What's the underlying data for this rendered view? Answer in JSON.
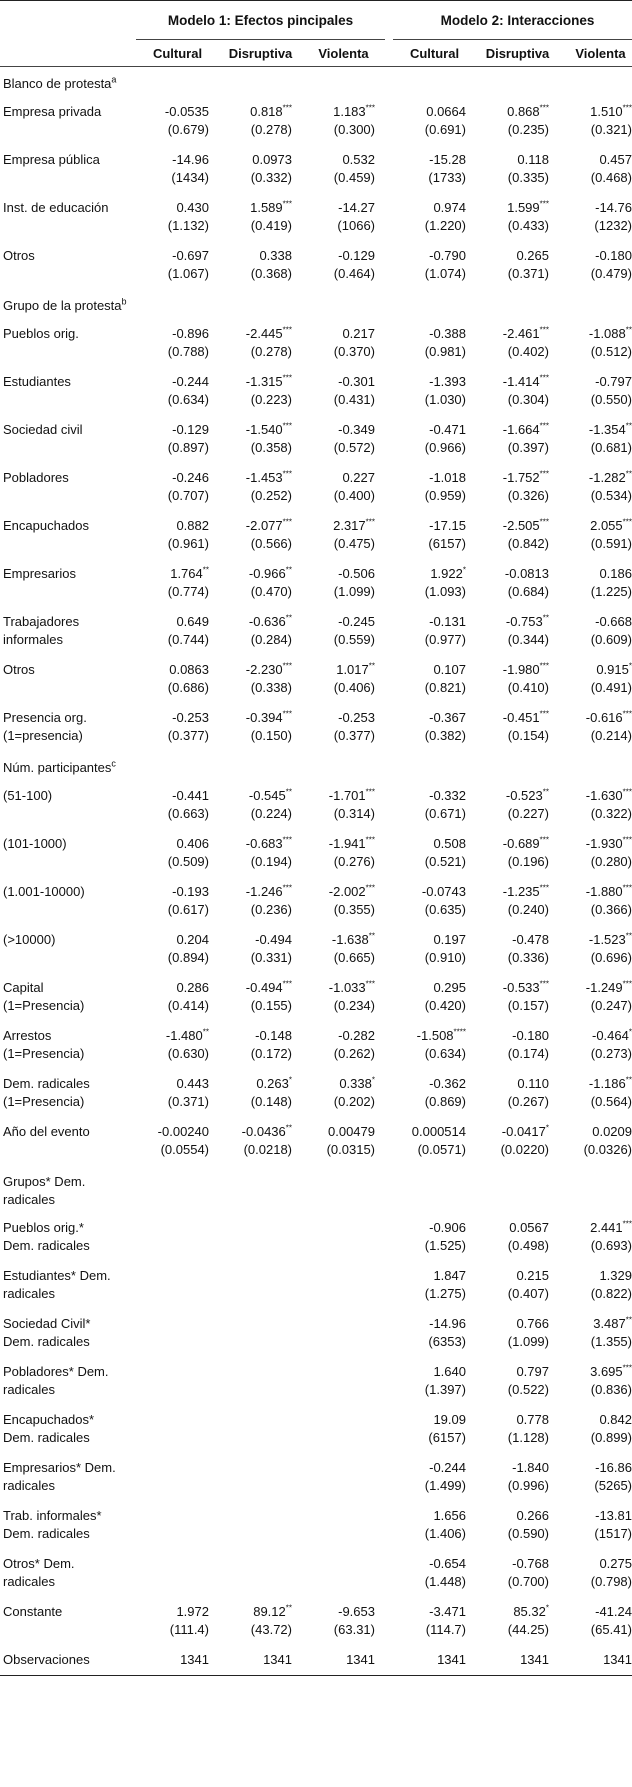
{
  "header": {
    "model1": "Modelo 1: Efectos pincipales",
    "model2": "Modelo 2: Interacciones",
    "columns": [
      "Cultural",
      "Disruptiva",
      "Violenta",
      "Cultural",
      "Disruptiva",
      "Violenta"
    ]
  },
  "rows": [
    {
      "type": "section",
      "label": "Blanco de protesta",
      "sup": "a"
    },
    {
      "type": "row",
      "label": [
        "Empresa privada"
      ],
      "cells": [
        [
          "-0.0535",
          "(0.679)"
        ],
        [
          "0.818***",
          "(0.278)"
        ],
        [
          "1.183***",
          "(0.300)"
        ],
        [
          "0.0664",
          "(0.691)"
        ],
        [
          "0.868***",
          "(0.235)"
        ],
        [
          "1.510***",
          "(0.321)"
        ]
      ]
    },
    {
      "type": "row",
      "label": [
        "Empresa pública"
      ],
      "cells": [
        [
          "-14.96",
          "(1434)"
        ],
        [
          "0.0973",
          "(0.332)"
        ],
        [
          "0.532",
          "(0.459)"
        ],
        [
          "-15.28",
          "(1733)"
        ],
        [
          "0.118",
          "(0.335)"
        ],
        [
          "0.457",
          "(0.468)"
        ]
      ]
    },
    {
      "type": "row",
      "label": [
        "Inst. de educación"
      ],
      "cells": [
        [
          "0.430",
          "(1.132)"
        ],
        [
          "1.589***",
          "(0.419)"
        ],
        [
          "-14.27",
          "(1066)"
        ],
        [
          "0.974",
          "(1.220)"
        ],
        [
          "1.599***",
          "(0.433)"
        ],
        [
          "-14.76",
          "(1232)"
        ]
      ]
    },
    {
      "type": "row",
      "label": [
        "Otros"
      ],
      "cells": [
        [
          "-0.697",
          "(1.067)"
        ],
        [
          "0.338",
          "(0.368)"
        ],
        [
          "-0.129",
          "(0.464)"
        ],
        [
          "-0.790",
          "(1.074)"
        ],
        [
          "0.265",
          "(0.371)"
        ],
        [
          "-0.180",
          "(0.479)"
        ]
      ]
    },
    {
      "type": "section",
      "label": "Grupo de la protesta",
      "sup": "b"
    },
    {
      "type": "row",
      "label": [
        "Pueblos orig."
      ],
      "cells": [
        [
          "-0.896",
          "(0.788)"
        ],
        [
          "-2.445***",
          "(0.278)"
        ],
        [
          "0.217",
          "(0.370)"
        ],
        [
          "-0.388",
          "(0.981)"
        ],
        [
          "-2.461***",
          "(0.402)"
        ],
        [
          "-1.088**",
          "(0.512)"
        ]
      ]
    },
    {
      "type": "row",
      "label": [
        "Estudiantes"
      ],
      "cells": [
        [
          "-0.244",
          "(0.634)"
        ],
        [
          "-1.315***",
          "(0.223)"
        ],
        [
          "-0.301",
          "(0.431)"
        ],
        [
          "-1.393",
          "(1.030)"
        ],
        [
          "-1.414***",
          "(0.304)"
        ],
        [
          "-0.797",
          "(0.550)"
        ]
      ]
    },
    {
      "type": "row",
      "label": [
        "Sociedad civil"
      ],
      "cells": [
        [
          "-0.129",
          "(0.897)"
        ],
        [
          "-1.540***",
          "(0.358)"
        ],
        [
          "-0.349",
          "(0.572)"
        ],
        [
          "-0.471",
          "(0.966)"
        ],
        [
          "-1.664***",
          "(0.397)"
        ],
        [
          "-1.354**",
          "(0.681)"
        ]
      ]
    },
    {
      "type": "row",
      "label": [
        "Pobladores"
      ],
      "cells": [
        [
          "-0.246",
          "(0.707)"
        ],
        [
          "-1.453***",
          "(0.252)"
        ],
        [
          "0.227",
          "(0.400)"
        ],
        [
          "-1.018",
          "(0.959)"
        ],
        [
          "-1.752***",
          "(0.326)"
        ],
        [
          "-1.282**",
          "(0.534)"
        ]
      ]
    },
    {
      "type": "row",
      "label": [
        "Encapuchados"
      ],
      "cells": [
        [
          "0.882",
          "(0.961)"
        ],
        [
          "-2.077***",
          "(0.566)"
        ],
        [
          "2.317***",
          "(0.475)"
        ],
        [
          "-17.15",
          "(6157)"
        ],
        [
          "-2.505***",
          "(0.842)"
        ],
        [
          "2.055***",
          "(0.591)"
        ]
      ]
    },
    {
      "type": "row",
      "label": [
        "Empresarios"
      ],
      "cells": [
        [
          "1.764**",
          "(0.774)"
        ],
        [
          "-0.966**",
          "(0.470)"
        ],
        [
          "-0.506",
          "(1.099)"
        ],
        [
          "1.922*",
          "(1.093)"
        ],
        [
          "-0.0813",
          "(0.684)"
        ],
        [
          "0.186",
          "(1.225)"
        ]
      ]
    },
    {
      "type": "row",
      "label": [
        "Trabajadores",
        "informales"
      ],
      "cells": [
        [
          "0.649",
          "(0.744)"
        ],
        [
          "-0.636**",
          "(0.284)"
        ],
        [
          "-0.245",
          "(0.559)"
        ],
        [
          "-0.131",
          "(0.977)"
        ],
        [
          "-0.753**",
          "(0.344)"
        ],
        [
          "-0.668",
          "(0.609)"
        ]
      ]
    },
    {
      "type": "row",
      "label": [
        "Otros"
      ],
      "cells": [
        [
          "0.0863",
          "(0.686)"
        ],
        [
          "-2.230***",
          "(0.338)"
        ],
        [
          "1.017**",
          "(0.406)"
        ],
        [
          "0.107",
          "(0.821)"
        ],
        [
          "-1.980***",
          "(0.410)"
        ],
        [
          "0.915*",
          "(0.491)"
        ]
      ]
    },
    {
      "type": "row",
      "label": [
        "Presencia org.",
        "(1=presencia)"
      ],
      "cells": [
        [
          "-0.253",
          "(0.377)"
        ],
        [
          "-0.394***",
          "(0.150)"
        ],
        [
          "-0.253",
          "(0.377)"
        ],
        [
          "-0.367",
          "(0.382)"
        ],
        [
          "-0.451***",
          "(0.154)"
        ],
        [
          "-0.616***",
          "(0.214)"
        ]
      ]
    },
    {
      "type": "section",
      "label": "Núm. participantes",
      "sup": "c"
    },
    {
      "type": "row",
      "label": [
        "(51-100)"
      ],
      "cells": [
        [
          "-0.441",
          "(0.663)"
        ],
        [
          "-0.545**",
          "(0.224)"
        ],
        [
          "-1.701***",
          "(0.314)"
        ],
        [
          "-0.332",
          "(0.671)"
        ],
        [
          "-0.523**",
          "(0.227)"
        ],
        [
          "-1.630***",
          "(0.322)"
        ]
      ]
    },
    {
      "type": "row",
      "label": [
        "(101-1000)"
      ],
      "cells": [
        [
          "0.406",
          "(0.509)"
        ],
        [
          "-0.683***",
          "(0.194)"
        ],
        [
          "-1.941***",
          "(0.276)"
        ],
        [
          "0.508",
          "(0.521)"
        ],
        [
          "-0.689***",
          "(0.196)"
        ],
        [
          "-1.930***",
          "(0.280)"
        ]
      ]
    },
    {
      "type": "row",
      "label": [
        "(1.001-10000)"
      ],
      "cells": [
        [
          "-0.193",
          "(0.617)"
        ],
        [
          "-1.246***",
          "(0.236)"
        ],
        [
          "-2.002***",
          "(0.355)"
        ],
        [
          "-0.0743",
          "(0.635)"
        ],
        [
          "-1.235***",
          "(0.240)"
        ],
        [
          "-1.880***",
          "(0.366)"
        ]
      ]
    },
    {
      "type": "row",
      "label": [
        "(>10000)"
      ],
      "cells": [
        [
          "0.204",
          "(0.894)"
        ],
        [
          "-0.494",
          "(0.331)"
        ],
        [
          "-1.638**",
          "(0.665)"
        ],
        [
          "0.197",
          "(0.910)"
        ],
        [
          "-0.478",
          "(0.336)"
        ],
        [
          "-1.523**",
          "(0.696)"
        ]
      ]
    },
    {
      "type": "row",
      "label": [
        "Capital",
        "(1=Presencia)"
      ],
      "cells": [
        [
          "0.286",
          "(0.414)"
        ],
        [
          "-0.494***",
          "(0.155)"
        ],
        [
          "-1.033***",
          "(0.234)"
        ],
        [
          "0.295",
          "(0.420)"
        ],
        [
          "-0.533***",
          "(0.157)"
        ],
        [
          "-1.249***",
          "(0.247)"
        ]
      ]
    },
    {
      "type": "row",
      "label": [
        "Arrestos",
        "(1=Presencia)"
      ],
      "cells": [
        [
          "-1.480**",
          "(0.630)"
        ],
        [
          "-0.148",
          "(0.172)"
        ],
        [
          "-0.282",
          "(0.262)"
        ],
        [
          "-1.508****",
          "(0.634)"
        ],
        [
          "-0.180",
          "(0.174)"
        ],
        [
          "-0.464*",
          "(0.273)"
        ]
      ]
    },
    {
      "type": "row",
      "label": [
        "Dem. radicales",
        "(1=Presencia)"
      ],
      "cells": [
        [
          "0.443",
          "(0.371)"
        ],
        [
          "0.263*",
          "(0.148)"
        ],
        [
          "0.338*",
          "(0.202)"
        ],
        [
          "-0.362",
          "(0.869)"
        ],
        [
          "0.110",
          "(0.267)"
        ],
        [
          "-1.186**",
          "(0.564)"
        ]
      ]
    },
    {
      "type": "row",
      "label": [
        "Año del evento"
      ],
      "cells": [
        [
          "-0.00240",
          "(0.0554)"
        ],
        [
          "-0.0436**",
          "(0.0218)"
        ],
        [
          "0.00479",
          "(0.0315)"
        ],
        [
          "0.000514",
          "(0.0571)"
        ],
        [
          "-0.0417*",
          "(0.0220)"
        ],
        [
          "0.0209",
          "(0.0326)"
        ]
      ]
    },
    {
      "type": "section",
      "label": "Grupos* Dem.",
      "label2": "radicales"
    },
    {
      "type": "row",
      "label": [
        "Pueblos orig.*",
        "Dem. radicales"
      ],
      "cells": [
        [
          "",
          ""
        ],
        [
          "",
          ""
        ],
        [
          "",
          ""
        ],
        [
          "-0.906",
          "(1.525)"
        ],
        [
          "0.0567",
          "(0.498)"
        ],
        [
          "2.441***",
          "(0.693)"
        ]
      ]
    },
    {
      "type": "row",
      "label": [
        "Estudiantes* Dem.",
        "radicales"
      ],
      "cells": [
        [
          "",
          ""
        ],
        [
          "",
          ""
        ],
        [
          "",
          ""
        ],
        [
          "1.847",
          "(1.275)"
        ],
        [
          "0.215",
          "(0.407)"
        ],
        [
          "1.329",
          "(0.822)"
        ]
      ]
    },
    {
      "type": "row",
      "label": [
        "Sociedad Civil*",
        "Dem. radicales"
      ],
      "cells": [
        [
          "",
          ""
        ],
        [
          "",
          ""
        ],
        [
          "",
          ""
        ],
        [
          "-14.96",
          "(6353)"
        ],
        [
          "0.766",
          "(1.099)"
        ],
        [
          "3.487**",
          "(1.355)"
        ]
      ]
    },
    {
      "type": "row",
      "label": [
        "Pobladores* Dem.",
        "radicales"
      ],
      "cells": [
        [
          "",
          ""
        ],
        [
          "",
          ""
        ],
        [
          "",
          ""
        ],
        [
          "1.640",
          "(1.397)"
        ],
        [
          "0.797",
          "(0.522)"
        ],
        [
          "3.695***",
          "(0.836)"
        ]
      ]
    },
    {
      "type": "row",
      "label": [
        "Encapuchados*",
        "Dem. radicales"
      ],
      "cells": [
        [
          "",
          ""
        ],
        [
          "",
          ""
        ],
        [
          "",
          ""
        ],
        [
          "19.09",
          "(6157)"
        ],
        [
          "0.778",
          "(1.128)"
        ],
        [
          "0.842",
          "(0.899)"
        ]
      ]
    },
    {
      "type": "row",
      "label": [
        "Empresarios* Dem.",
        "radicales"
      ],
      "cells": [
        [
          "",
          ""
        ],
        [
          "",
          ""
        ],
        [
          "",
          ""
        ],
        [
          "-0.244",
          "(1.499)"
        ],
        [
          "-1.840",
          "(0.996)"
        ],
        [
          "-16.86",
          "(5265)"
        ]
      ]
    },
    {
      "type": "row",
      "label": [
        "Trab. informales*",
        "Dem. radicales"
      ],
      "cells": [
        [
          "",
          ""
        ],
        [
          "",
          ""
        ],
        [
          "",
          ""
        ],
        [
          "1.656",
          "(1.406)"
        ],
        [
          "0.266",
          "(0.590)"
        ],
        [
          "-13.81",
          "(1517)"
        ]
      ]
    },
    {
      "type": "row",
      "label": [
        "Otros* Dem.",
        "radicales"
      ],
      "cells": [
        [
          "",
          ""
        ],
        [
          "",
          ""
        ],
        [
          "",
          ""
        ],
        [
          "-0.654",
          "(1.448)"
        ],
        [
          "-0.768",
          "(0.700)"
        ],
        [
          "0.275",
          "(0.798)"
        ]
      ]
    },
    {
      "type": "row",
      "label": [
        "Constante"
      ],
      "cells": [
        [
          "1.972",
          "(111.4)"
        ],
        [
          "89.12**",
          "(43.72)"
        ],
        [
          "-9.653",
          "(63.31)"
        ],
        [
          "-3.471",
          "(114.7)"
        ],
        [
          "85.32*",
          "(44.25)"
        ],
        [
          "-41.24",
          "(65.41)"
        ]
      ]
    },
    {
      "type": "row",
      "label": [
        "Observaciones"
      ],
      "cells": [
        [
          "1341"
        ],
        [
          "1341"
        ],
        [
          "1341"
        ],
        [
          "1341"
        ],
        [
          "1341"
        ],
        [
          "1341"
        ]
      ],
      "last": true
    }
  ]
}
